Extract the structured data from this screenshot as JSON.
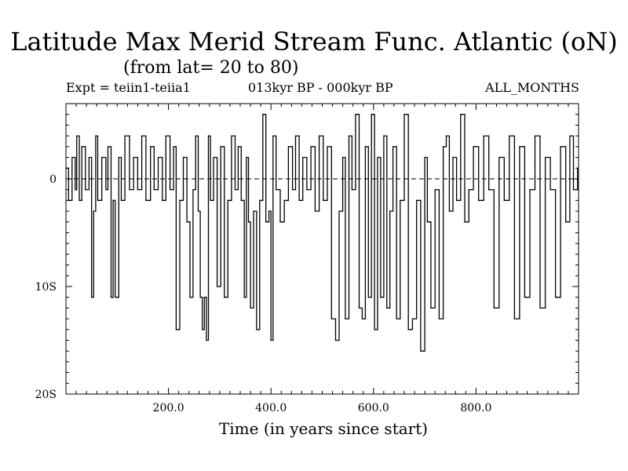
{
  "chart_data": {
    "type": "line",
    "title": "Latitude Max Merid Stream Func. Atlantic (oN)",
    "subtitle": "(from lat= 20 to 80)",
    "header_left": "Expt = teiin1-teiia1",
    "header_center": "013kyr BP - 000kyr BP",
    "header_right": "ALL_MONTHS",
    "xlabel": "Time (in years since start)",
    "ylabel": "",
    "xlim": [
      0,
      1000
    ],
    "ylim": [
      -20,
      7
    ],
    "x_ticks": [
      200,
      400,
      600,
      800
    ],
    "x_tick_labels": [
      "200.0",
      "400.0",
      "600.0",
      "800.0"
    ],
    "y_ticks": [
      0,
      -10,
      -20
    ],
    "y_tick_labels": [
      "0",
      "10S",
      "20S"
    ],
    "reference_line": {
      "value": 0,
      "style": "dashed"
    },
    "series": [
      {
        "x": [
          0,
          5,
          12,
          18,
          21,
          26,
          31,
          38,
          45,
          50,
          54,
          58,
          62,
          70,
          78,
          82,
          88,
          92,
          96,
          103,
          108,
          115,
          124,
          132,
          140,
          148,
          156,
          165,
          172,
          180,
          188,
          195,
          203,
          210,
          215,
          222,
          229,
          236,
          242,
          248,
          253,
          258,
          262,
          266,
          270,
          274,
          278,
          282,
          288,
          295,
          302,
          309,
          316,
          323,
          330,
          336,
          342,
          348,
          352,
          356,
          360,
          366,
          372,
          378,
          384,
          390,
          396,
          400,
          404,
          410,
          418,
          426,
          434,
          442,
          448,
          455,
          462,
          470,
          478,
          486,
          494,
          502,
          510,
          518,
          526,
          533,
          540,
          545,
          552,
          558,
          565,
          572,
          578,
          584,
          590,
          596,
          602,
          608,
          614,
          620,
          626,
          632,
          638,
          645,
          652,
          660,
          668,
          676,
          684,
          692,
          700,
          705,
          712,
          720,
          728,
          736,
          742,
          748,
          755,
          762,
          770,
          778,
          786,
          795,
          805,
          815,
          825,
          835,
          845,
          855,
          865,
          875,
          885,
          895,
          905,
          915,
          925,
          935,
          945,
          955,
          965,
          975,
          983,
          990,
          998
        ],
        "y": [
          1,
          -2,
          2,
          -1,
          4,
          -2,
          3,
          -1,
          2,
          -11,
          -3,
          4,
          -2,
          2,
          -1,
          3,
          -11,
          -2,
          -11,
          2,
          -2,
          4,
          -1,
          2,
          -1,
          4,
          -2,
          3,
          -1,
          2,
          -2,
          4,
          -1,
          3,
          -14,
          -2,
          2,
          -4,
          -11,
          -1,
          4,
          -3,
          -11,
          -14,
          -11,
          -15,
          4,
          -2,
          2,
          -10,
          3,
          -11,
          -2,
          4,
          -1,
          3,
          -2,
          -11,
          2,
          -4,
          -12,
          -3,
          -14,
          -2,
          6,
          -4,
          -3,
          -15,
          4,
          -1,
          -4,
          -2,
          3,
          -1,
          4,
          -2,
          2,
          -1,
          3,
          -3,
          4,
          -2,
          3,
          -13,
          -15,
          -3,
          2,
          -13,
          4,
          -1,
          6,
          -12,
          -13,
          3,
          -11,
          6,
          -14,
          2,
          -11,
          4,
          -12,
          -3,
          3,
          -13,
          -2,
          6,
          -14,
          -13,
          -2,
          -16,
          2,
          -4,
          -12,
          -1,
          -13,
          3,
          4,
          -3,
          2,
          -2,
          6,
          -4,
          -1,
          3,
          -2,
          4,
          -1,
          -12,
          2,
          -2,
          4,
          -13,
          3,
          -11,
          -1,
          4,
          -12,
          2,
          -1,
          -11,
          3,
          -4,
          4,
          -1,
          1
        ]
      }
    ]
  }
}
